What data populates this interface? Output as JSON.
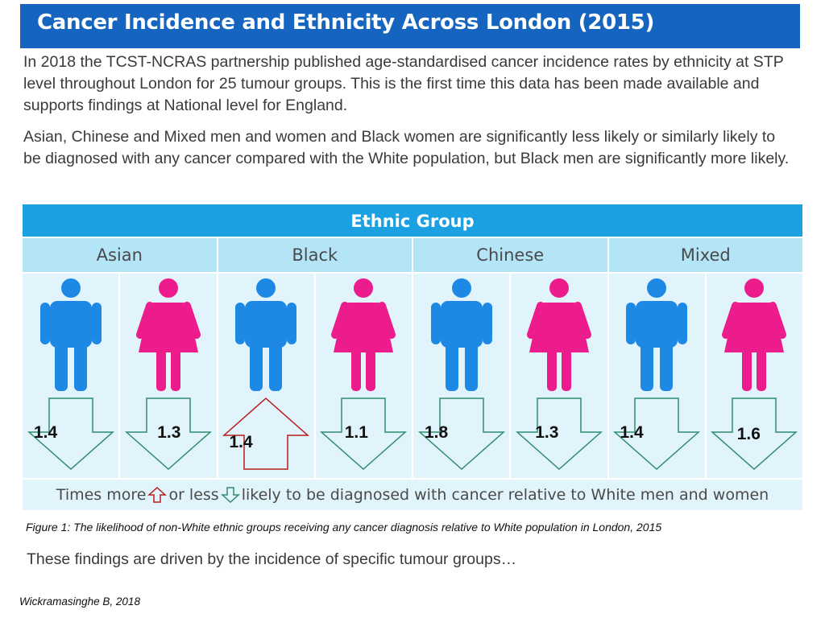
{
  "title": "Cancer Incidence and Ethnicity Across London (2015)",
  "paragraphs": [
    "In 2018 the TCST-NCRAS partnership published age-standardised cancer incidence rates by ethnicity at STP level throughout London for 25 tumour groups. This is the first time this data has been made available and supports findings at National level for England.",
    "Asian, Chinese and Mixed men and women and Black women are significantly less likely or similarly likely to be diagnosed with any cancer compared with the White population, but Black men are significantly more likely."
  ],
  "table": {
    "header": "Ethnic Group",
    "groups": [
      "Asian",
      "Black",
      "Chinese",
      "Mixed"
    ],
    "cells": [
      {
        "sex": "male",
        "value": "1.4",
        "direction": "less",
        "icon": "man-icon"
      },
      {
        "sex": "female",
        "value": "1.3",
        "direction": "less",
        "icon": "woman-icon"
      },
      {
        "sex": "male",
        "value": "1.4",
        "direction": "more",
        "icon": "man-icon"
      },
      {
        "sex": "female",
        "value": "1.1",
        "direction": "less",
        "icon": "woman-icon"
      },
      {
        "sex": "male",
        "value": "1.8",
        "direction": "less",
        "icon": "man-icon"
      },
      {
        "sex": "female",
        "value": "1.3",
        "direction": "less",
        "icon": "woman-icon"
      },
      {
        "sex": "male",
        "value": "1.4",
        "direction": "less",
        "icon": "man-icon"
      },
      {
        "sex": "female",
        "value": "1.6",
        "direction": "less",
        "icon": "woman-icon"
      }
    ],
    "legend": {
      "text_start": "Times more",
      "text_mid": "or less",
      "text_end": "likely to be diagnosed with cancer relative to White men and women"
    }
  },
  "colors": {
    "title_bar": "#1565c0",
    "header": "#1ba1e2",
    "subheader": "#b3e5f7",
    "cell_bg": "#e1f4fc",
    "male": "#1e88e5",
    "female": "#ec1c8c",
    "arrow_less": "#2e8b6e",
    "arrow_more": "#b71c1c"
  },
  "caption": "Figure 1: The likelihood of non-White ethnic groups receiving any cancer diagnosis relative to White population in London, 2015",
  "summary": "These findings are driven by the incidence of specific tumour groups…",
  "citation": "Wickramasinghe B, 2018"
}
